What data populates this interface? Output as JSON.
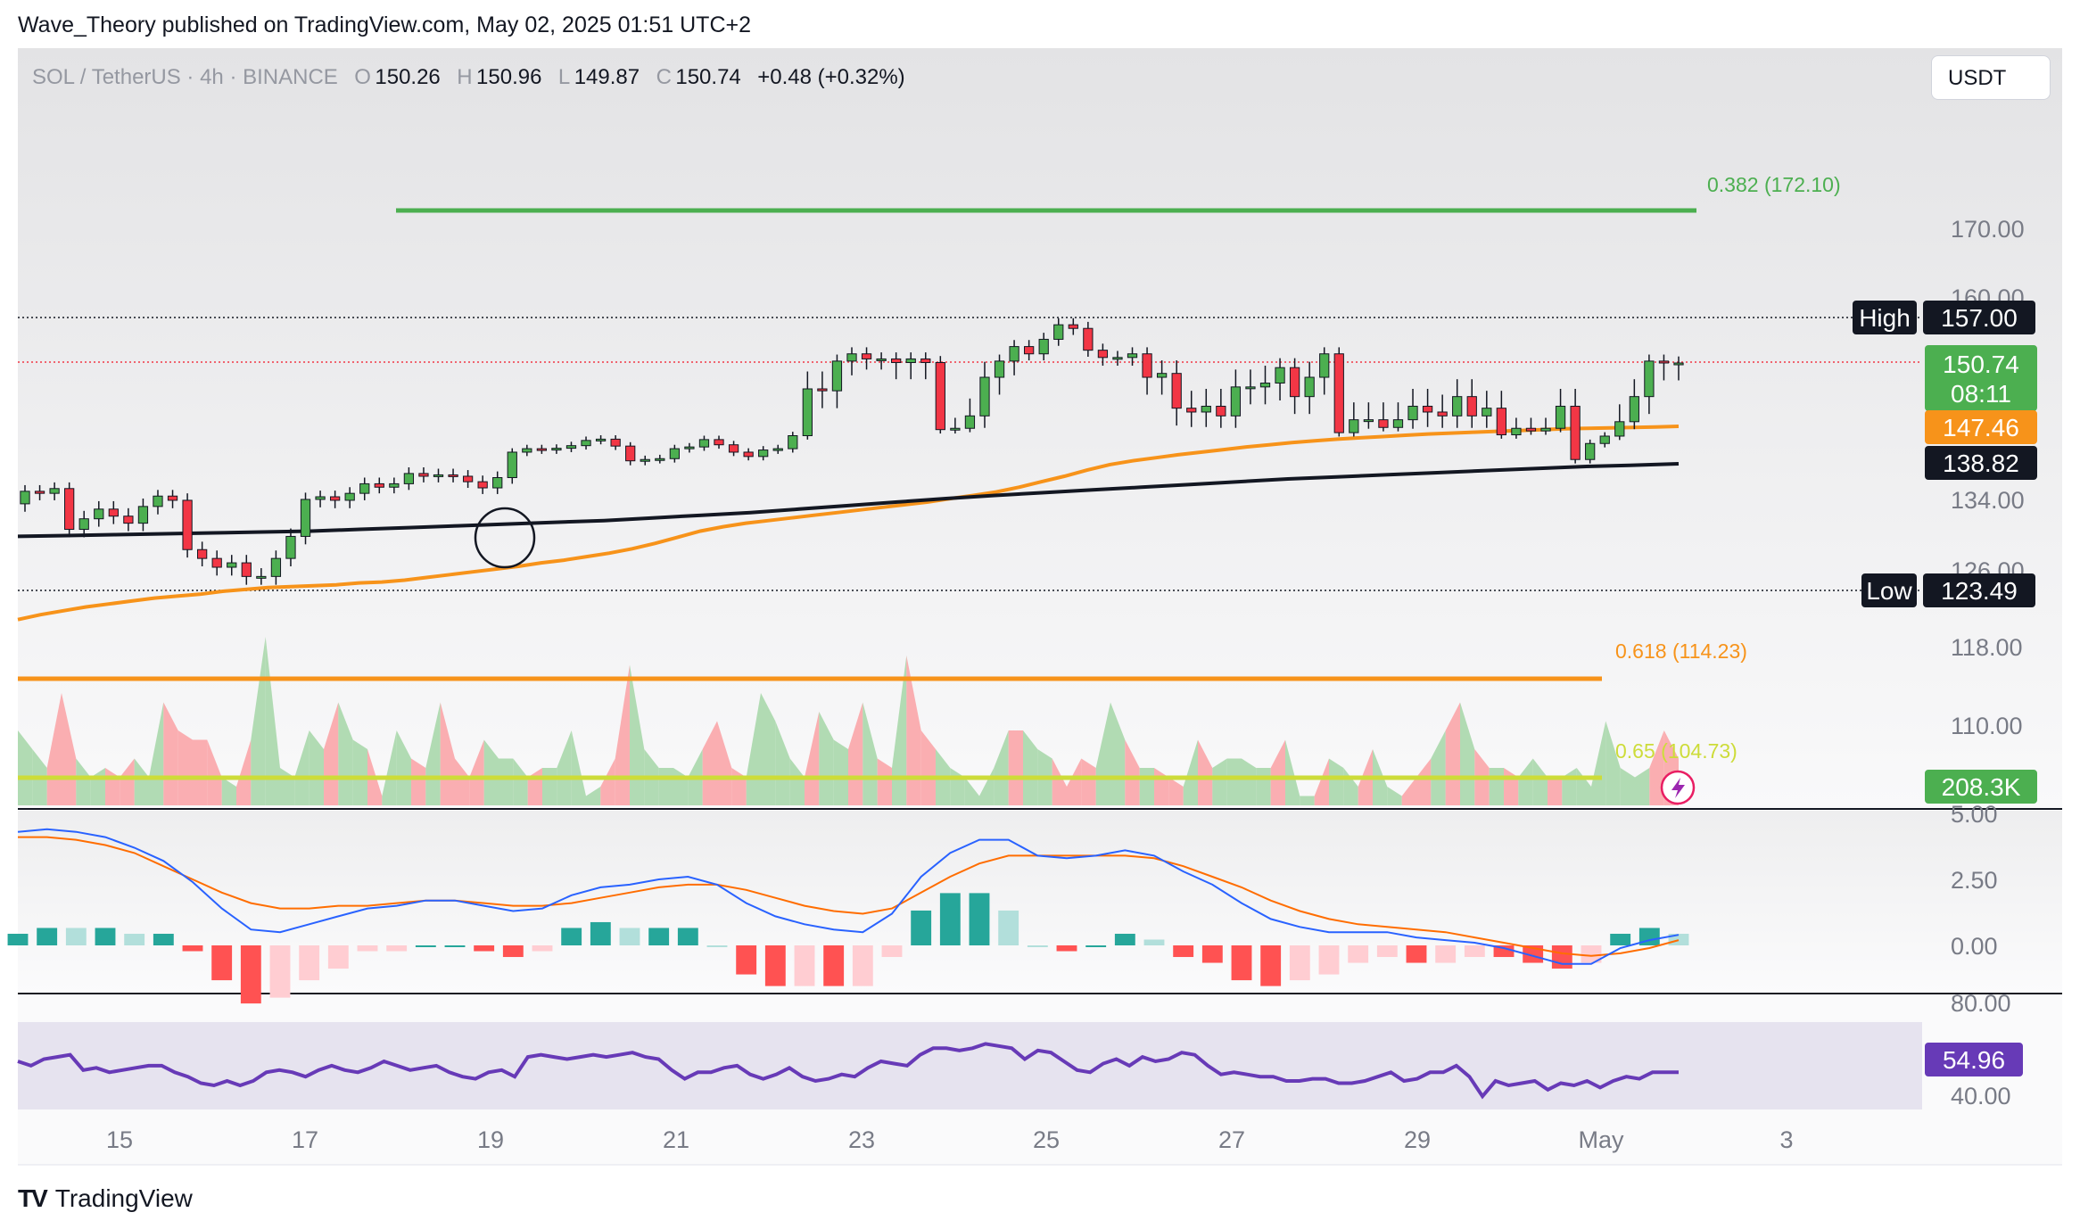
{
  "header": {
    "text": "Wave_Theory published on TradingView.com, May 02, 2025 01:51 UTC+2"
  },
  "footer": {
    "brand": "TradingView",
    "logo_icon": "tradingview-logo-icon"
  },
  "currency_button": {
    "label": "USDT"
  },
  "legend": {
    "symbol": "SOL / TetherUS · 4h · BINANCE",
    "o_label": "O",
    "o": "150.26",
    "h_label": "H",
    "h": "150.96",
    "l_label": "L",
    "l": "149.87",
    "c_label": "C",
    "c": "150.74",
    "change": "+0.48 (+0.32%)"
  },
  "badges": {
    "high_label": "High",
    "high_value": "157.00",
    "low_label": "Low",
    "low_value": "123.49",
    "last_price": "150.74",
    "countdown": "08:11",
    "ema_orange": "147.46",
    "ema_black": "138.82",
    "volume": "208.3K",
    "rsi": "54.96"
  },
  "colors": {
    "up": "#4caf50",
    "down": "#f23645",
    "ema50": "#f7931a",
    "ema200": "#131722",
    "fib382": "#4caf50",
    "fib618": "#f7931a",
    "fib65": "#cddc39",
    "macd": "#2962ff",
    "signal": "#ff6d00",
    "rsi": "#673ab7",
    "vol_up": "#a5d6a7",
    "vol_down": "#faa1a4"
  },
  "chart_data": [
    {
      "type": "candlestick",
      "title": "SOL / TetherUS · 4h · BINANCE",
      "y_ticks": [
        "170.00",
        "160.00",
        "134.00",
        "126.00",
        "118.00",
        "110.00"
      ],
      "x_ticks": [
        "15",
        "17",
        "19",
        "21",
        "23",
        "25",
        "27",
        "29",
        "May",
        "3"
      ],
      "open": [
        133.2,
        134.8,
        134.5,
        135.2,
        130.3,
        131.5,
        132.6,
        131.8,
        131.0,
        132.9,
        134.1,
        133.6,
        128.0,
        127.0,
        126.0,
        126.5,
        125.0,
        125.0,
        127.0,
        129.5,
        133.7,
        134.0,
        133.6,
        134.5,
        135.9,
        135.4,
        135.9,
        137.4,
        137.0,
        137.2,
        137.0,
        136.2,
        135.3,
        136.8,
        141.5,
        142.3,
        142.0,
        142.4,
        143.0,
        144.2,
        144.5,
        142.9,
        139.5,
        139.8,
        140.0,
        142.3,
        142.7,
        144.4,
        143.2,
        141.5,
        140.5,
        142.0,
        142.3,
        145.3,
        149.4,
        149.3,
        151.0,
        152.0,
        151.3,
        151.3,
        150.8,
        151.3,
        150.8,
        146.7,
        147.0,
        148.0,
        150.0,
        151.0,
        153.0,
        152.0,
        154.0,
        156.0,
        155.5,
        152.5,
        151.5,
        151.5,
        152.0,
        150.0,
        150.2,
        148.4,
        148.2,
        148.5,
        148.0,
        149.5,
        149.5,
        149.7,
        150.5,
        149.0,
        150.0,
        152.0,
        146.0,
        147.8,
        147.8,
        147.2,
        147.8,
        148.5,
        148.2,
        148.0,
        149.0,
        148.0,
        148.4,
        145.5,
        147.0,
        146.4,
        147.0,
        148.5,
        139.8,
        143.5,
        145.2,
        147.7,
        149.0,
        151.0,
        150.74
      ],
      "close": [
        134.8,
        134.5,
        135.2,
        130.3,
        131.5,
        132.6,
        131.8,
        131.0,
        132.9,
        134.1,
        133.6,
        128.0,
        127.0,
        126.0,
        126.5,
        125.0,
        125.0,
        127.0,
        129.5,
        133.7,
        134.0,
        133.6,
        134.5,
        135.9,
        135.4,
        135.9,
        137.4,
        137.0,
        137.2,
        137.0,
        136.2,
        135.3,
        136.8,
        141.5,
        142.3,
        142.0,
        142.4,
        143.0,
        144.2,
        144.5,
        142.9,
        139.5,
        139.8,
        140.0,
        142.3,
        142.7,
        144.4,
        143.2,
        141.5,
        140.5,
        142.0,
        142.3,
        145.3,
        149.4,
        149.3,
        151.0,
        152.0,
        151.3,
        151.3,
        150.8,
        151.3,
        150.8,
        146.7,
        147.0,
        148.0,
        150.0,
        151.0,
        153.0,
        152.0,
        154.0,
        156.0,
        155.5,
        152.5,
        151.5,
        151.5,
        152.0,
        150.0,
        150.2,
        148.4,
        148.2,
        148.5,
        148.0,
        149.5,
        149.5,
        149.7,
        150.5,
        149.0,
        150.0,
        152.0,
        146.0,
        147.8,
        147.8,
        147.2,
        147.8,
        148.5,
        148.2,
        148.0,
        149.0,
        148.0,
        148.4,
        145.5,
        147.0,
        146.4,
        147.0,
        148.5,
        139.8,
        143.5,
        145.2,
        147.7,
        149.0,
        151.0,
        150.74,
        150.74
      ],
      "ema50": [
        120.5,
        121.0,
        121.4,
        121.8,
        122.1,
        122.4,
        122.7,
        122.9,
        123.1,
        123.4,
        123.6,
        123.8,
        123.9,
        124.0,
        124.1,
        124.3,
        124.4,
        124.6,
        124.9,
        125.2,
        125.5,
        125.8,
        126.1,
        126.5,
        126.8,
        127.2,
        127.6,
        128.1,
        128.7,
        129.4,
        130.1,
        130.6,
        131.0,
        131.3,
        131.6,
        131.9,
        132.2,
        132.5,
        132.8,
        133.1,
        133.4,
        133.8,
        134.2,
        134.7,
        135.4,
        136.2,
        137.0,
        137.9,
        138.7,
        139.5,
        140.2,
        140.9,
        141.5,
        142.1,
        142.7,
        143.2,
        143.7,
        144.1,
        144.5,
        144.8,
        145.1,
        145.4,
        145.7,
        145.9,
        146.1,
        146.3,
        146.5,
        146.7,
        146.9,
        147.0,
        147.1,
        147.2,
        147.3,
        147.46
      ],
      "ema200": [
        129.5,
        129.6,
        129.7,
        129.8,
        129.9,
        130.0,
        130.1,
        130.3,
        130.5,
        130.7,
        130.9,
        131.1,
        131.3,
        131.6,
        131.9,
        132.2,
        132.6,
        133.0,
        133.4,
        133.8,
        134.2,
        134.6,
        135.0,
        135.4,
        135.8,
        136.2,
        136.6,
        136.9,
        137.2,
        137.5,
        137.8,
        138.1,
        138.4,
        138.6,
        138.82
      ],
      "fib_levels": [
        {
          "label": "0.382 (172.10)",
          "value": 172.1
        },
        {
          "label": "0.618 (114.23)",
          "value": 114.23
        },
        {
          "label": "0.65 (104.73)",
          "value": 104.73
        }
      ],
      "high": 157.0,
      "low": 123.49,
      "last": 150.74
    },
    {
      "type": "bar",
      "title": "Volume",
      "last": "208.3K",
      "values": [
        40,
        30,
        20,
        60,
        25,
        15,
        20,
        15,
        25,
        15,
        55,
        40,
        35,
        35,
        15,
        10,
        35,
        90,
        20,
        15,
        40,
        30,
        55,
        35,
        30,
        5,
        40,
        25,
        20,
        55,
        25,
        15,
        35,
        25,
        25,
        15,
        20,
        20,
        40,
        5,
        10,
        25,
        75,
        30,
        20,
        20,
        15,
        30,
        45,
        20,
        15,
        60,
        45,
        25,
        15,
        50,
        35,
        30,
        55,
        25,
        20,
        80,
        40,
        30,
        20,
        15,
        5,
        20,
        40,
        40,
        30,
        25,
        10,
        25,
        20,
        55,
        35,
        20,
        20,
        15,
        10,
        35,
        20,
        25,
        25,
        20,
        20,
        35,
        5,
        5,
        25,
        20,
        10,
        30,
        10,
        5,
        15,
        25,
        40,
        55,
        30,
        20,
        20,
        15,
        25,
        15,
        15,
        20,
        10,
        45,
        20,
        15,
        20,
        40,
        25
      ],
      "up": [
        true,
        true,
        false,
        false,
        true,
        true,
        false,
        false,
        true,
        true,
        false,
        false,
        false,
        false,
        true,
        false,
        true,
        true,
        true,
        true,
        true,
        false,
        true,
        true,
        false,
        true,
        true,
        false,
        true,
        false,
        false,
        false,
        true,
        true,
        true,
        false,
        true,
        true,
        true,
        true,
        false,
        false,
        true,
        true,
        true,
        true,
        true,
        false,
        false,
        false,
        true,
        true,
        true,
        true,
        false,
        true,
        true,
        false,
        true,
        false,
        true,
        false,
        false,
        true,
        true,
        true,
        true,
        true,
        false,
        true,
        true,
        false,
        false,
        false,
        true,
        true,
        false,
        true,
        false,
        false,
        true,
        false,
        true,
        true,
        true,
        true,
        false,
        true,
        true,
        false,
        true,
        true,
        false,
        true,
        true,
        false,
        false,
        true,
        false,
        true,
        false,
        true,
        false,
        true,
        true,
        false,
        true,
        true,
        true,
        true,
        true,
        true,
        false,
        false,
        true
      ]
    },
    {
      "type": "line",
      "title": "MACD",
      "y_ticks": [
        "5.00",
        "2.50",
        "0.00"
      ],
      "macd": [
        4.3,
        4.4,
        4.3,
        4.1,
        3.7,
        3.2,
        2.4,
        1.4,
        0.6,
        0.5,
        0.8,
        1.1,
        1.4,
        1.5,
        1.7,
        1.7,
        1.5,
        1.3,
        1.4,
        1.9,
        2.2,
        2.3,
        2.5,
        2.6,
        2.3,
        1.6,
        1.1,
        0.8,
        0.6,
        0.5,
        1.2,
        2.6,
        3.5,
        4.0,
        4.0,
        3.4,
        3.3,
        3.4,
        3.6,
        3.4,
        2.8,
        2.3,
        1.6,
        1.0,
        0.7,
        0.5,
        0.5,
        0.5,
        0.3,
        0.2,
        0.1,
        -0.1,
        -0.4,
        -0.7,
        -0.7,
        -0.1,
        0.2,
        0.4
      ],
      "signal": [
        4.1,
        4.1,
        4.0,
        3.8,
        3.5,
        3.0,
        2.5,
        2.0,
        1.6,
        1.4,
        1.4,
        1.5,
        1.5,
        1.6,
        1.7,
        1.7,
        1.6,
        1.5,
        1.5,
        1.6,
        1.8,
        2.0,
        2.2,
        2.3,
        2.3,
        2.1,
        1.8,
        1.5,
        1.3,
        1.2,
        1.4,
        2.0,
        2.6,
        3.1,
        3.4,
        3.4,
        3.4,
        3.4,
        3.4,
        3.3,
        3.0,
        2.6,
        2.2,
        1.7,
        1.3,
        1.0,
        0.8,
        0.7,
        0.6,
        0.5,
        0.3,
        0.1,
        -0.1,
        -0.3,
        -0.4,
        -0.3,
        -0.1,
        0.2
      ]
    },
    {
      "type": "line",
      "title": "RSI",
      "y_ticks": [
        "80.00",
        "40.00"
      ],
      "values": [
        60,
        58,
        61,
        62,
        63,
        56,
        57,
        55,
        56,
        57,
        58,
        58,
        55,
        53,
        50,
        49,
        51,
        49,
        51,
        55,
        56,
        55,
        53,
        56,
        58,
        56,
        55,
        57,
        60,
        58,
        56,
        57,
        58,
        55,
        53,
        52,
        55,
        56,
        53,
        62,
        63,
        62,
        61,
        62,
        63,
        62,
        63,
        64,
        62,
        61,
        56,
        52,
        55,
        55,
        57,
        58,
        54,
        52,
        54,
        57,
        53,
        51,
        52,
        54,
        53,
        57,
        60,
        59,
        58,
        63,
        66,
        66,
        65,
        66,
        68,
        67,
        66,
        61,
        65,
        64,
        60,
        56,
        55,
        59,
        61,
        58,
        62,
        60,
        61,
        64,
        63,
        58,
        54,
        55,
        54,
        53,
        53,
        51,
        51,
        52,
        52,
        50,
        50,
        51,
        53,
        55,
        51,
        52,
        55,
        55,
        58,
        53,
        44,
        51,
        49,
        50,
        51,
        47,
        50,
        49,
        51,
        48,
        51,
        53,
        52,
        55,
        55,
        54.96
      ]
    }
  ]
}
